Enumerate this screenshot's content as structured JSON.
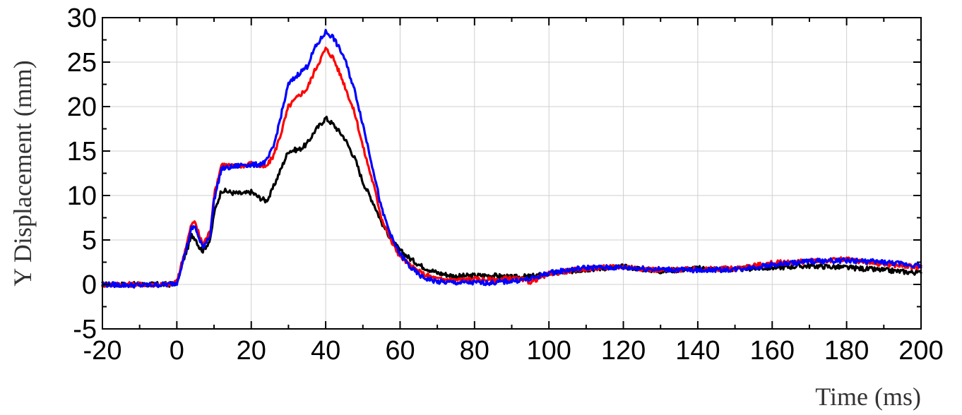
{
  "chart_data": {
    "type": "line",
    "xlabel": "Time (ms)",
    "ylabel": "Y Displacement (mm)",
    "xlim": [
      -20,
      200
    ],
    "ylim": [
      -5,
      30
    ],
    "x_ticks": [
      -20,
      0,
      20,
      40,
      60,
      80,
      100,
      120,
      140,
      160,
      180,
      200
    ],
    "y_ticks": [
      -5,
      0,
      5,
      10,
      15,
      20,
      25,
      30
    ],
    "x_tick_labels": [
      "-20",
      "0",
      "20",
      "40",
      "60",
      "80",
      "100",
      "120",
      "140",
      "160",
      "180",
      "200"
    ],
    "y_tick_labels": [
      "-5",
      "0",
      "5",
      "10",
      "15",
      "20",
      "25",
      "30"
    ],
    "grid": true,
    "series": [
      {
        "color": "#000000",
        "points": [
          [
            -20,
            0
          ],
          [
            -10,
            0
          ],
          [
            -2,
            0
          ],
          [
            0,
            0.2
          ],
          [
            2,
            3
          ],
          [
            4,
            5.5
          ],
          [
            5,
            5.2
          ],
          [
            6,
            4.2
          ],
          [
            7,
            3.8
          ],
          [
            9,
            5
          ],
          [
            10,
            8
          ],
          [
            12,
            10.6
          ],
          [
            15,
            10.3
          ],
          [
            18,
            10.2
          ],
          [
            20,
            10.4
          ],
          [
            22,
            9.8
          ],
          [
            24,
            9.4
          ],
          [
            25,
            10
          ],
          [
            28,
            13
          ],
          [
            30,
            15
          ],
          [
            33,
            15.2
          ],
          [
            35,
            15.8
          ],
          [
            37,
            17.2
          ],
          [
            40,
            18.7
          ],
          [
            42,
            18
          ],
          [
            45,
            16.5
          ],
          [
            48,
            14
          ],
          [
            50,
            11.5
          ],
          [
            53,
            9
          ],
          [
            55,
            7
          ],
          [
            58,
            4.8
          ],
          [
            60,
            3.8
          ],
          [
            63,
            2.8
          ],
          [
            66,
            2
          ],
          [
            70,
            1.3
          ],
          [
            75,
            0.9
          ],
          [
            80,
            1
          ],
          [
            85,
            1
          ],
          [
            90,
            0.8
          ],
          [
            95,
            0.9
          ],
          [
            100,
            1.2
          ],
          [
            110,
            1.7
          ],
          [
            120,
            2
          ],
          [
            130,
            1.5
          ],
          [
            140,
            1.8
          ],
          [
            150,
            1.7
          ],
          [
            160,
            1.9
          ],
          [
            170,
            2.1
          ],
          [
            180,
            1.9
          ],
          [
            190,
            1.6
          ],
          [
            200,
            1.3
          ]
        ]
      },
      {
        "color": "#ff0000",
        "points": [
          [
            -20,
            0
          ],
          [
            -10,
            0
          ],
          [
            -2,
            0
          ],
          [
            0,
            0.3
          ],
          [
            2,
            3.5
          ],
          [
            4,
            6.8
          ],
          [
            5,
            7
          ],
          [
            6,
            5.5
          ],
          [
            7,
            4.5
          ],
          [
            9,
            6
          ],
          [
            10,
            10
          ],
          [
            12,
            13.5
          ],
          [
            15,
            13.3
          ],
          [
            18,
            13.4
          ],
          [
            20,
            13.6
          ],
          [
            22,
            13.3
          ],
          [
            24,
            13.2
          ],
          [
            26,
            14.5
          ],
          [
            28,
            17
          ],
          [
            30,
            20
          ],
          [
            33,
            21.3
          ],
          [
            35,
            22
          ],
          [
            37,
            24
          ],
          [
            40,
            26.5
          ],
          [
            42,
            25.5
          ],
          [
            45,
            22.5
          ],
          [
            48,
            19
          ],
          [
            50,
            15.5
          ],
          [
            53,
            11
          ],
          [
            55,
            7.5
          ],
          [
            58,
            4.5
          ],
          [
            60,
            3.2
          ],
          [
            63,
            2
          ],
          [
            66,
            1.2
          ],
          [
            70,
            0.6
          ],
          [
            75,
            0.5
          ],
          [
            80,
            0.6
          ],
          [
            85,
            0.5
          ],
          [
            90,
            0.7
          ],
          [
            95,
            0.3
          ],
          [
            100,
            1.2
          ],
          [
            110,
            1.8
          ],
          [
            120,
            2
          ],
          [
            130,
            1.6
          ],
          [
            140,
            1.7
          ],
          [
            150,
            1.8
          ],
          [
            160,
            2.4
          ],
          [
            170,
            2.6
          ],
          [
            180,
            2.8
          ],
          [
            190,
            2.3
          ],
          [
            200,
            1.9
          ]
        ]
      },
      {
        "color": "#0000ff",
        "points": [
          [
            -20,
            0
          ],
          [
            -10,
            -0.1
          ],
          [
            -2,
            0
          ],
          [
            0,
            0.2
          ],
          [
            2,
            3.2
          ],
          [
            4,
            6.3
          ],
          [
            5,
            6.5
          ],
          [
            6,
            5
          ],
          [
            7,
            4.2
          ],
          [
            9,
            5.6
          ],
          [
            10,
            9.5
          ],
          [
            12,
            13
          ],
          [
            15,
            13.2
          ],
          [
            18,
            13.5
          ],
          [
            20,
            13.4
          ],
          [
            22,
            13.5
          ],
          [
            24,
            13.8
          ],
          [
            26,
            15.5
          ],
          [
            28,
            19
          ],
          [
            30,
            22.5
          ],
          [
            33,
            23.8
          ],
          [
            35,
            24.5
          ],
          [
            37,
            26.5
          ],
          [
            40,
            28.4
          ],
          [
            42,
            27.8
          ],
          [
            45,
            25.5
          ],
          [
            48,
            21.5
          ],
          [
            50,
            18
          ],
          [
            53,
            12.5
          ],
          [
            55,
            8.5
          ],
          [
            58,
            5
          ],
          [
            60,
            3.4
          ],
          [
            63,
            1.8
          ],
          [
            66,
            0.8
          ],
          [
            70,
            0.3
          ],
          [
            75,
            0.2
          ],
          [
            80,
            0.2
          ],
          [
            85,
            0.2
          ],
          [
            90,
            0.4
          ],
          [
            95,
            0.6
          ],
          [
            100,
            1.3
          ],
          [
            110,
            1.9
          ],
          [
            120,
            1.9
          ],
          [
            130,
            1.7
          ],
          [
            140,
            1.6
          ],
          [
            150,
            1.7
          ],
          [
            160,
            2.2
          ],
          [
            170,
            2.6
          ],
          [
            180,
            2.7
          ],
          [
            190,
            2.5
          ],
          [
            200,
            2.1
          ]
        ]
      }
    ]
  }
}
